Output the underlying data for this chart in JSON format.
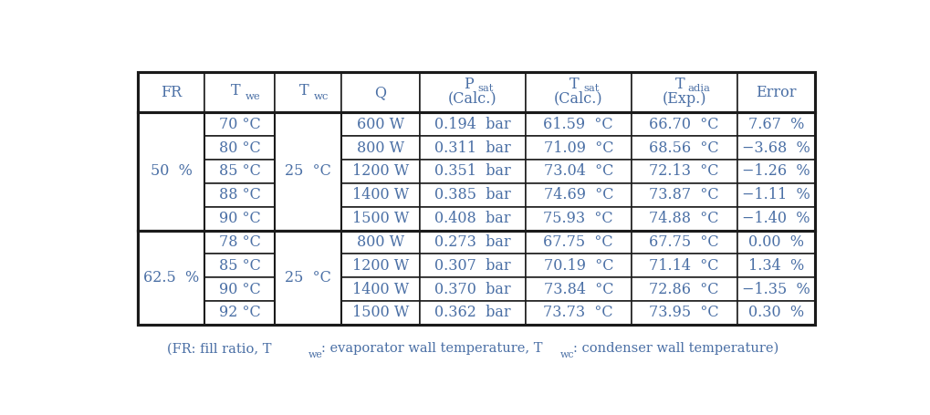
{
  "rows_group1": [
    [
      "70 °C",
      "600 W",
      "0.194  bar",
      "61.59  °C",
      "66.70  °C",
      "7.67  %"
    ],
    [
      "80 °C",
      "800 W",
      "0.311  bar",
      "71.09  °C",
      "68.56  °C",
      "−3.68  %"
    ],
    [
      "85 °C",
      "1200 W",
      "0.351  bar",
      "73.04  °C",
      "72.13  °C",
      "−1.26  %"
    ],
    [
      "88 °C",
      "1400 W",
      "0.385  bar",
      "74.69  °C",
      "73.87  °C",
      "−1.11  %"
    ],
    [
      "90 °C",
      "1500 W",
      "0.408  bar",
      "75.93  °C",
      "74.88  °C",
      "−1.40  %"
    ]
  ],
  "group1_fr": "50  %",
  "group1_twc": "25  °C",
  "rows_group2": [
    [
      "78 °C",
      "800 W",
      "0.273  bar",
      "67.75  °C",
      "67.75  °C",
      "0.00  %"
    ],
    [
      "85 °C",
      "1200 W",
      "0.307  bar",
      "70.19  °C",
      "71.14  °C",
      "1.34  %"
    ],
    [
      "90 °C",
      "1400 W",
      "0.370  bar",
      "73.84  °C",
      "72.86  °C",
      "−1.35  %"
    ],
    [
      "92 °C",
      "1500 W",
      "0.362  bar",
      "73.73  °C",
      "73.95  °C",
      "0.30  %"
    ]
  ],
  "group2_fr": "62.5  %",
  "group2_twc": "25  °C",
  "text_color": "#4a6fa5",
  "border_color": "#1a1a1a",
  "bg_color": "#ffffff",
  "font_size": 11.5,
  "footnote_size": 10.5
}
